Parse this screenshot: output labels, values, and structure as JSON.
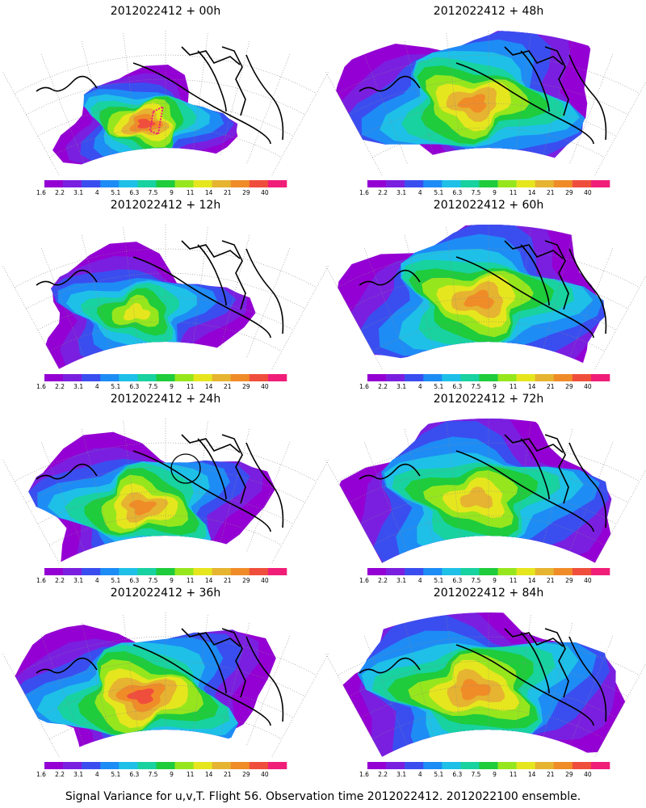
{
  "figure": {
    "caption": "Signal Variance for u,v,T. Flight 56. Observation time 2012022412. 2012022100 ensemble."
  },
  "panels": [
    {
      "title": "2012022412 + 00h",
      "spread": 0.42,
      "peak": 0.95,
      "center": [
        0.43,
        0.58
      ],
      "marker": "flight-track"
    },
    {
      "title": "2012022412 + 12h",
      "spread": 0.58,
      "peak": 0.7,
      "center": [
        0.4,
        0.55
      ],
      "marker": null
    },
    {
      "title": "2012022412 + 24h",
      "spread": 0.7,
      "peak": 0.85,
      "center": [
        0.42,
        0.55
      ],
      "marker": "circle"
    },
    {
      "title": "2012022412 + 36h",
      "spread": 0.8,
      "peak": 0.88,
      "center": [
        0.42,
        0.52
      ],
      "marker": null
    },
    {
      "title": "2012022412 + 48h",
      "spread": 0.84,
      "peak": 0.86,
      "center": [
        0.45,
        0.45
      ],
      "marker": null
    },
    {
      "title": "2012022412 + 60h",
      "spread": 0.88,
      "peak": 0.8,
      "center": [
        0.47,
        0.47
      ],
      "marker": null
    },
    {
      "title": "2012022412 + 72h",
      "spread": 0.92,
      "peak": 0.78,
      "center": [
        0.46,
        0.5
      ],
      "marker": null
    },
    {
      "title": "2012022412 + 84h",
      "spread": 0.96,
      "peak": 0.86,
      "center": [
        0.45,
        0.48
      ],
      "marker": null
    }
  ],
  "colorbar": {
    "labels": [
      "1.6",
      "2.2",
      "3.1",
      "4",
      "5.1",
      "6.3",
      "7.5",
      "9",
      "11",
      "14",
      "21",
      "29",
      "40"
    ],
    "colors": [
      "#9400d3",
      "#7a1fe0",
      "#3a4ef0",
      "#1e8cf5",
      "#1ec0e8",
      "#18d2a0",
      "#1ecc3c",
      "#96e61e",
      "#e6e61e",
      "#e6b430",
      "#f08c28",
      "#f04e3c",
      "#f01e78"
    ]
  },
  "map_colors": {
    "coast": "#000000",
    "grid": "#888888"
  }
}
